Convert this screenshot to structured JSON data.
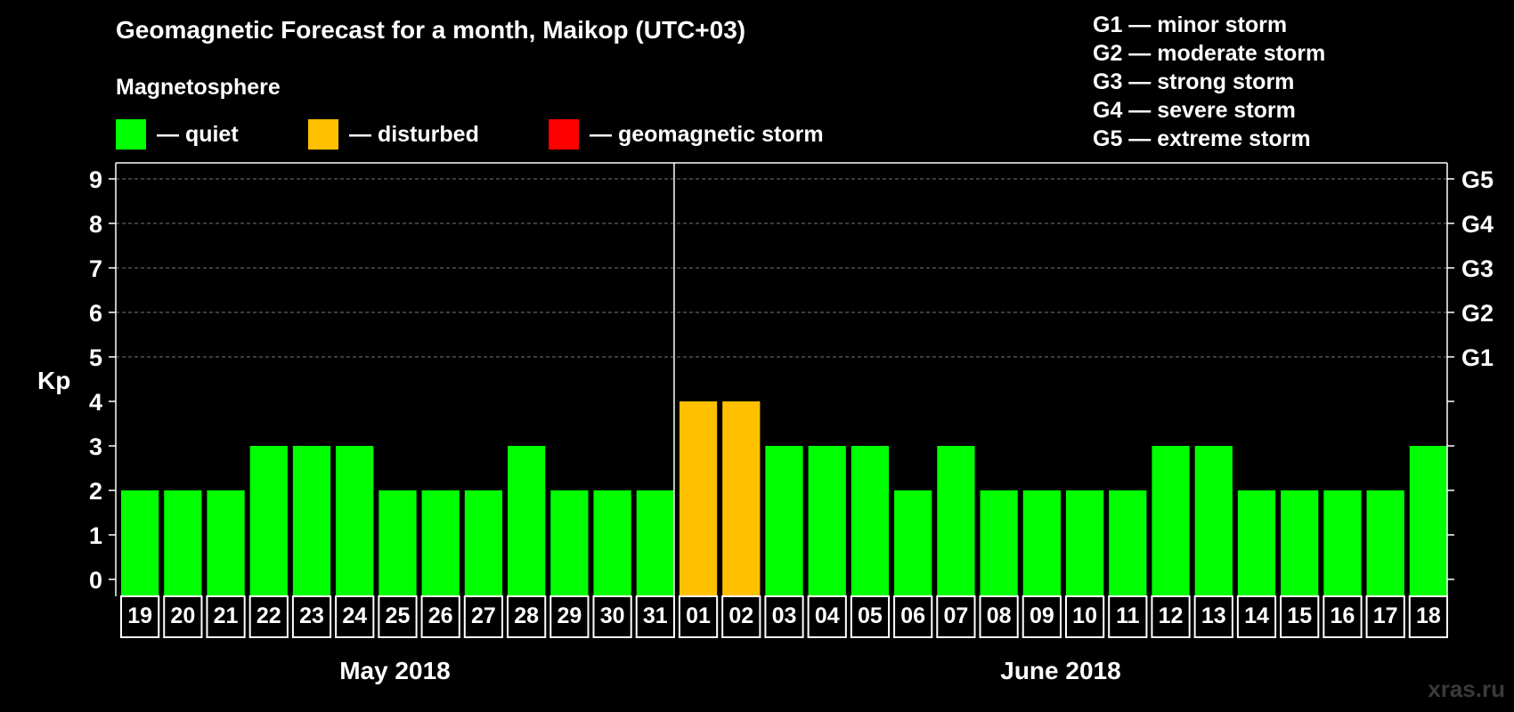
{
  "title": "Geomagnetic Forecast for a month, Maikop (UTC+03)",
  "legend": {
    "heading": "Magnetosphere",
    "items": [
      {
        "label": "— quiet",
        "color": "#00ff00"
      },
      {
        "label": "— disturbed",
        "color": "#ffc000"
      },
      {
        "label": "— geomagnetic storm",
        "color": "#ff0000"
      }
    ]
  },
  "storm_scale": [
    "G1 — minor storm",
    "G2 — moderate storm",
    "G3 — strong storm",
    "G4 — severe storm",
    "G5 — extreme storm"
  ],
  "watermark": "xras.ru",
  "chart_data": {
    "type": "bar",
    "ylabel": "Kp",
    "ylim": [
      0,
      9
    ],
    "yticks": [
      "0",
      "1",
      "2",
      "3",
      "4",
      "5",
      "6",
      "7",
      "8",
      "9"
    ],
    "right_axis": [
      {
        "value": 5,
        "label": "G1"
      },
      {
        "value": 6,
        "label": "G2"
      },
      {
        "value": 7,
        "label": "G3"
      },
      {
        "value": 8,
        "label": "G4"
      },
      {
        "value": 9,
        "label": "G5"
      }
    ],
    "grid": "dashed horizontal at 5-9",
    "categories": [
      "19",
      "20",
      "21",
      "22",
      "23",
      "24",
      "25",
      "26",
      "27",
      "28",
      "29",
      "30",
      "31",
      "01",
      "02",
      "03",
      "04",
      "05",
      "06",
      "07",
      "08",
      "09",
      "10",
      "11",
      "12",
      "13",
      "14",
      "15",
      "16",
      "17",
      "18"
    ],
    "values": [
      2,
      2,
      2,
      3,
      3,
      3,
      2,
      2,
      2,
      3,
      2,
      2,
      2,
      4,
      4,
      3,
      3,
      3,
      2,
      3,
      2,
      2,
      2,
      2,
      3,
      3,
      2,
      2,
      2,
      2,
      3
    ],
    "colors": [
      "#00ff00",
      "#00ff00",
      "#00ff00",
      "#00ff00",
      "#00ff00",
      "#00ff00",
      "#00ff00",
      "#00ff00",
      "#00ff00",
      "#00ff00",
      "#00ff00",
      "#00ff00",
      "#00ff00",
      "#ffc000",
      "#ffc000",
      "#00ff00",
      "#00ff00",
      "#00ff00",
      "#00ff00",
      "#00ff00",
      "#00ff00",
      "#00ff00",
      "#00ff00",
      "#00ff00",
      "#00ff00",
      "#00ff00",
      "#00ff00",
      "#00ff00",
      "#00ff00",
      "#00ff00",
      "#00ff00"
    ],
    "months": [
      {
        "label": "May 2018",
        "count": 13
      },
      {
        "label": "June 2018",
        "count": 18
      }
    ]
  }
}
